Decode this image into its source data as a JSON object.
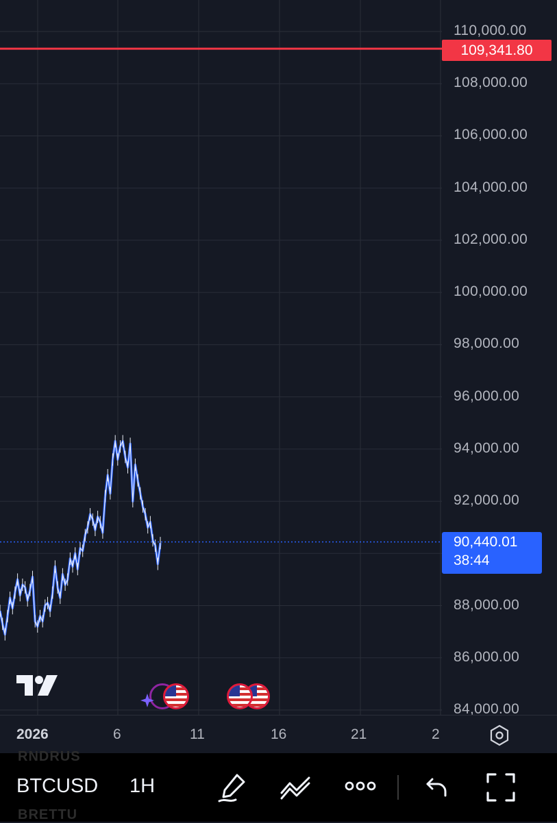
{
  "chart": {
    "price_scale": [
      "110,000.00",
      "108,000.00",
      "106,000.00",
      "104,000.00",
      "102,000.00",
      "100,000.00",
      "98,000.00",
      "96,000.00",
      "94,000.00",
      "92,000.00",
      "88,000.00",
      "86,000.00",
      "84,000.00"
    ],
    "alert_price": "109,341.80",
    "last_price": "90,440.01",
    "countdown": "38:44",
    "time_scale": {
      "year": "2026",
      "days": [
        "6",
        "11",
        "16",
        "21",
        "2"
      ]
    },
    "colors": {
      "background": "#151924",
      "grid": "#2a2e39",
      "candle": "#2962ff",
      "wick": "#ffffff",
      "alert_line": "#f23645",
      "last_price": "#2962ff",
      "event_border": "#e0193a"
    },
    "icons": [
      "tradingview-logo-icon",
      "us-flag-event-icon",
      "sparkle-icon",
      "settings-hexagon-icon"
    ]
  },
  "toolbar": {
    "symbol": "BTCUSD",
    "interval": "1H",
    "ghost_top": "RNDRUS",
    "ghost_bottom": "BRETTU",
    "icons": [
      "drawing-pen-icon",
      "indicators-icon",
      "more-icon",
      "undo-icon",
      "fullscreen-icon"
    ]
  },
  "chart_data": {
    "type": "line",
    "series": [
      {
        "values": [
          87800,
          87300,
          86900,
          87600,
          88300,
          87900,
          88500,
          89000,
          88400,
          88800,
          88700,
          88200,
          88600,
          89100,
          87400,
          87200,
          87600,
          87400,
          88000,
          88100,
          87800,
          88500,
          89500,
          88700,
          88300,
          89200,
          88800,
          89000,
          89800,
          89500,
          90000,
          89400,
          90200,
          90100,
          90700,
          91000,
          91500,
          91300,
          90900,
          91400,
          91200,
          90800,
          92200,
          93000,
          92300,
          93600,
          94300,
          93600,
          94100,
          94300,
          93700,
          93300,
          94200,
          92000,
          93400,
          92800,
          92300,
          91800,
          91500,
          91000,
          91200,
          90500,
          90300,
          89600,
          90400
        ]
      }
    ],
    "alert_level": 109341.8,
    "last_value": 90440.01,
    "ylim": [
      84000,
      111000
    ],
    "x_start": "2026-01-02",
    "x_end": "2026-01-08",
    "grid": true
  }
}
